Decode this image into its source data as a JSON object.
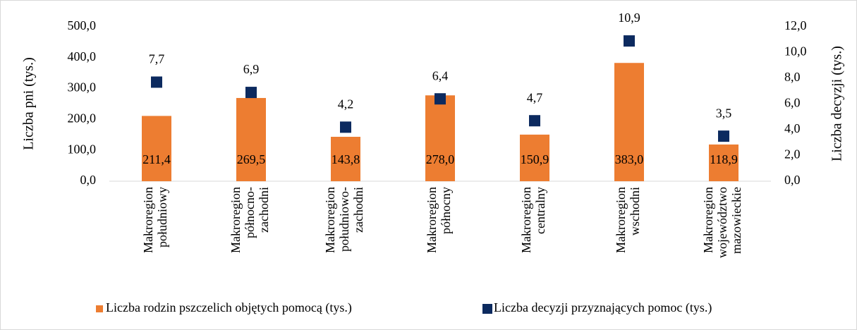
{
  "chart_data": {
    "type": "combo",
    "categories": [
      [
        "Makroregion",
        "południowy"
      ],
      [
        "Makroregion",
        "północno-",
        "zachodni"
      ],
      [
        "Makroregion",
        "południowo-",
        "zachodni"
      ],
      [
        "Makroregion",
        "północny"
      ],
      [
        "Makroregion",
        "centralny"
      ],
      [
        "Makroregion",
        "wschodni"
      ],
      [
        "Makroregion",
        "województwo",
        "mazowieckie"
      ]
    ],
    "series": [
      {
        "name": "Liczba rodzin pszczelich objętych pomocą (tys.)",
        "type": "bar",
        "color": "#ed7d31",
        "values": [
          211.4,
          269.5,
          143.8,
          278.0,
          150.9,
          383.0,
          118.9
        ],
        "value_labels": [
          "211,4",
          "269,5",
          "143,8",
          "278,0",
          "150,9",
          "383,0",
          "118,9"
        ]
      },
      {
        "name": "Liczba decyzji przyznających pomoc (tys.)",
        "type": "scatter",
        "color": "#0c2a5f",
        "axis": "y2",
        "values": [
          7.7,
          6.9,
          4.2,
          6.4,
          4.7,
          10.9,
          3.5
        ],
        "value_labels": [
          "7,7",
          "6,9",
          "4,2",
          "6,4",
          "4,7",
          "10,9",
          "3,5"
        ]
      }
    ],
    "y_label": "Liczba pni (tys.)",
    "y2_label": "Liczba decyzji (tys.)",
    "ylim": [
      0,
      500
    ],
    "yticks": [
      {
        "value": 0,
        "label": "0,0"
      },
      {
        "value": 100,
        "label": "100,0"
      },
      {
        "value": 200,
        "label": "200,0"
      },
      {
        "value": 300,
        "label": "300,0"
      },
      {
        "value": 400,
        "label": "400,0"
      },
      {
        "value": 500,
        "label": "500,0"
      }
    ],
    "y2lim": [
      0,
      12
    ],
    "y2ticks": [
      {
        "value": 0,
        "label": "0,0"
      },
      {
        "value": 2,
        "label": "2,0"
      },
      {
        "value": 4,
        "label": "4,0"
      },
      {
        "value": 6,
        "label": "6,0"
      },
      {
        "value": 8,
        "label": "8,0"
      },
      {
        "value": 10,
        "label": "10,0"
      },
      {
        "value": 12,
        "label": "12,0"
      }
    ],
    "legend": "bottom"
  }
}
